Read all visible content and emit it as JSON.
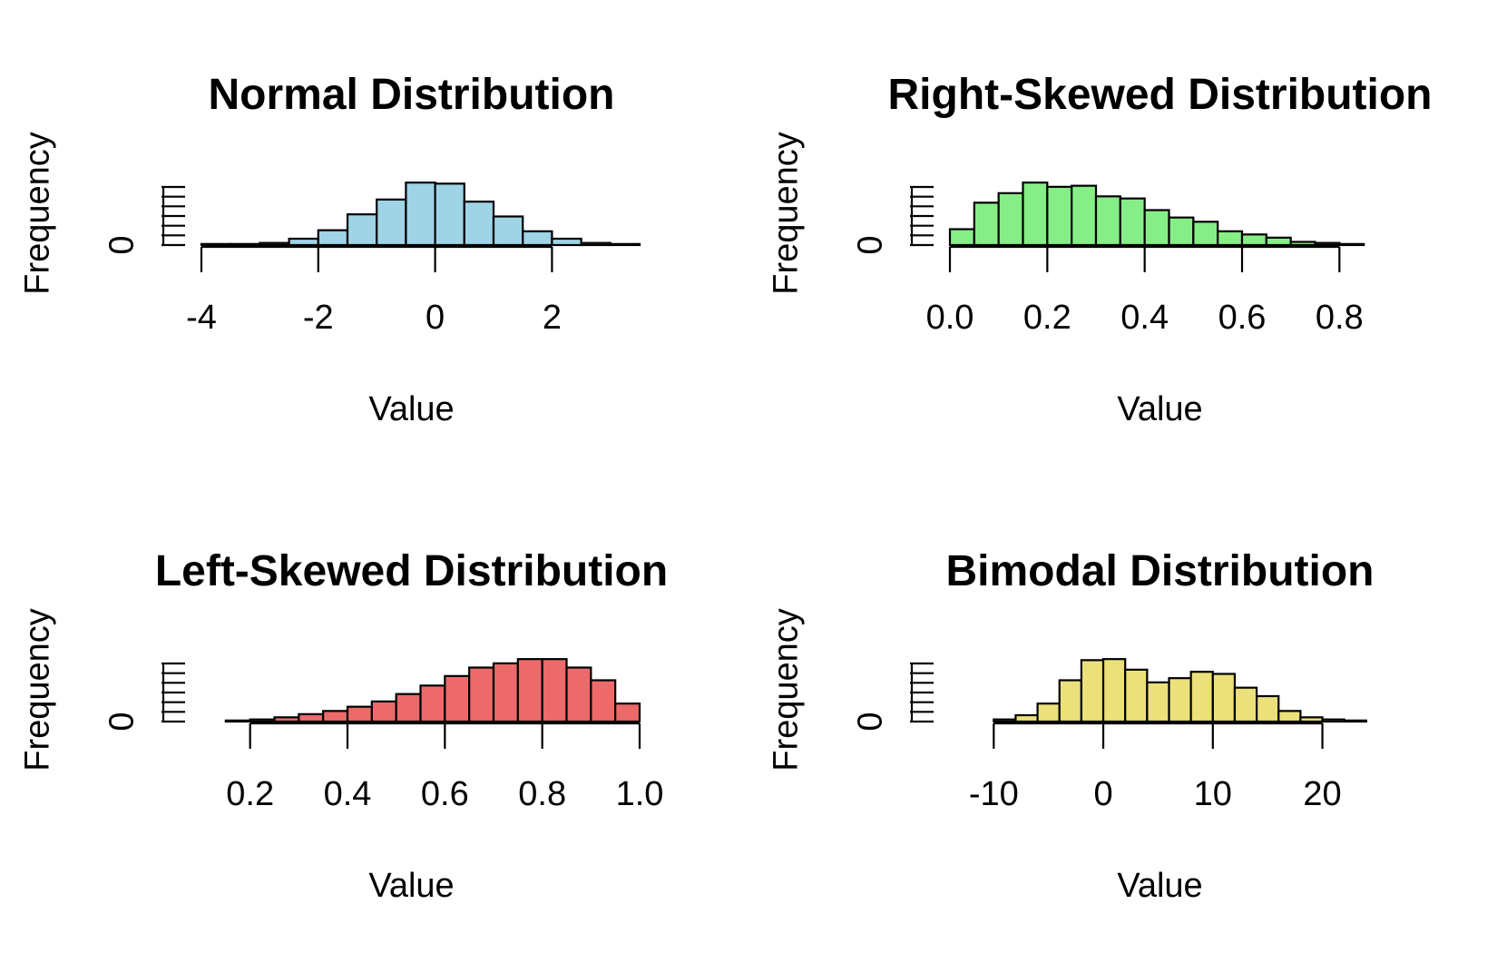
{
  "chart_data": [
    {
      "type": "bar",
      "title": "Normal Distribution",
      "xlabel": "Value",
      "ylabel": "Frequency",
      "y_tick_labels": [
        "0"
      ],
      "x_ticks": [
        -4,
        -2,
        0,
        2
      ],
      "x_tick_labels": [
        "-4",
        "-2",
        "0",
        "2"
      ],
      "xlim": [
        -4,
        3.5
      ],
      "ylim": [
        0,
        60
      ],
      "bin_edges": [
        -4,
        -3.5,
        -3,
        -2.5,
        -2,
        -1.5,
        -1,
        -0.5,
        0,
        0.5,
        1,
        1.5,
        2,
        2.5,
        3,
        3.5
      ],
      "values": [
        1,
        1,
        2,
        6,
        14,
        29,
        43,
        59,
        58,
        41,
        27,
        13,
        6,
        2,
        1
      ],
      "color": "#9fd3e6"
    },
    {
      "type": "bar",
      "title": "Right-Skewed Distribution",
      "xlabel": "Value",
      "ylabel": "Frequency",
      "y_tick_labels": [
        "0"
      ],
      "x_ticks": [
        0,
        0.2,
        0.4,
        0.6,
        0.8
      ],
      "x_tick_labels": [
        "0.0",
        "0.2",
        "0.4",
        "0.6",
        "0.8"
      ],
      "xlim": [
        0,
        0.9
      ],
      "ylim": [
        0,
        60
      ],
      "bin_edges": [
        0,
        0.05,
        0.1,
        0.15,
        0.2,
        0.25,
        0.3,
        0.35,
        0.4,
        0.45,
        0.5,
        0.55,
        0.6,
        0.65,
        0.7,
        0.75,
        0.8,
        0.85,
        0.9
      ],
      "values": [
        15,
        40,
        49,
        59,
        55,
        56,
        46,
        44,
        33,
        26,
        22,
        13,
        10,
        7,
        3,
        2,
        1,
        0
      ],
      "color": "#86ee86"
    },
    {
      "type": "bar",
      "title": "Left-Skewed Distribution",
      "xlabel": "Value",
      "ylabel": "Frequency",
      "y_tick_labels": [
        "0"
      ],
      "x_ticks": [
        0.2,
        0.4,
        0.6,
        0.8,
        1.0
      ],
      "x_tick_labels": [
        "0.2",
        "0.4",
        "0.6",
        "0.8",
        "1.0"
      ],
      "xlim": [
        0.1,
        1.0
      ],
      "ylim": [
        0,
        60
      ],
      "bin_edges": [
        0.1,
        0.15,
        0.2,
        0.25,
        0.3,
        0.35,
        0.4,
        0.45,
        0.5,
        0.55,
        0.6,
        0.65,
        0.7,
        0.75,
        0.8,
        0.85,
        0.9,
        0.95,
        1.0
      ],
      "values": [
        0,
        1,
        2,
        4,
        7,
        10,
        14,
        19,
        26,
        34,
        43,
        51,
        55,
        59,
        59,
        51,
        39,
        17
      ],
      "color": "#ec6a6a"
    },
    {
      "type": "bar",
      "title": "Bimodal Distribution",
      "xlabel": "Value",
      "ylabel": "Frequency",
      "y_tick_labels": [
        "0"
      ],
      "x_ticks": [
        -10,
        0,
        10,
        20
      ],
      "x_tick_labels": [
        "-10",
        "0",
        "10",
        "20"
      ],
      "xlim": [
        -14,
        26
      ],
      "ylim": [
        0,
        60
      ],
      "bin_edges": [
        -14,
        -12,
        -10,
        -8,
        -6,
        -4,
        -2,
        0,
        2,
        4,
        6,
        8,
        10,
        12,
        14,
        16,
        18,
        20,
        22,
        24,
        26
      ],
      "values": [
        0,
        0,
        2,
        6,
        17,
        39,
        58,
        59,
        49,
        37,
        41,
        47,
        45,
        32,
        24,
        10,
        4,
        2,
        1,
        0
      ],
      "color": "#ebe07a"
    }
  ]
}
